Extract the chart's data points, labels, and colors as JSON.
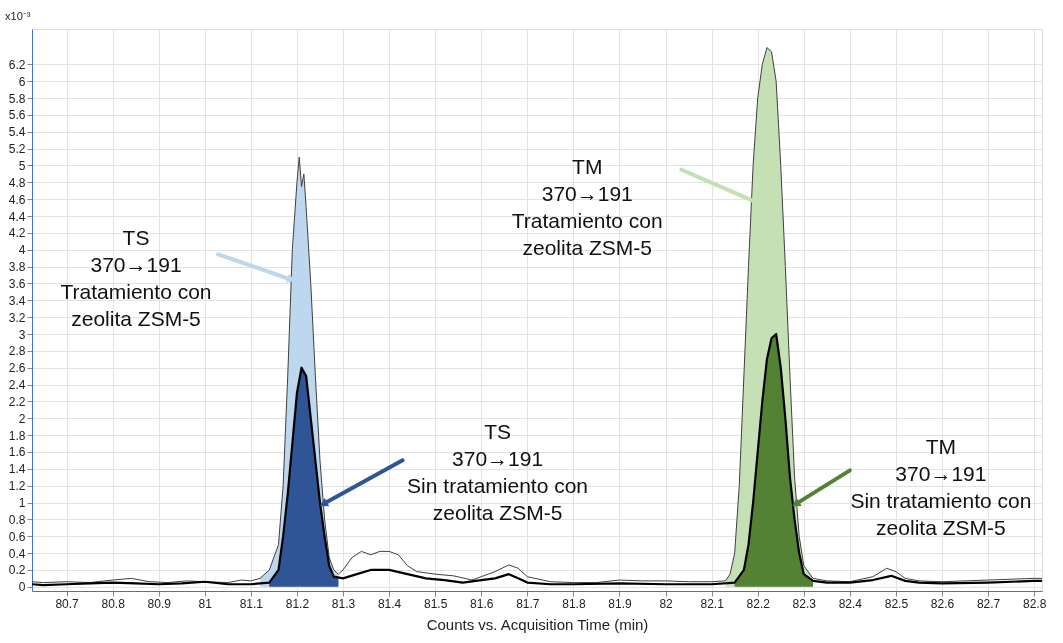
{
  "chart_data": {
    "type": "line",
    "xlabel": "Counts vs. Acquisition Time (min)",
    "ylabel": "x10⁻³",
    "xlim": [
      80.625,
      82.817
    ],
    "ylim": [
      -0.05,
      6.62
    ],
    "xticks": [
      80.7,
      80.8,
      80.9,
      81,
      81.1,
      81.2,
      81.3,
      81.4,
      81.5,
      81.6,
      81.7,
      81.8,
      81.9,
      82,
      82.1,
      82.2,
      82.3,
      82.4,
      82.5,
      82.6,
      82.7,
      82.8
    ],
    "yticks": [
      0,
      0.2,
      0.4,
      0.6,
      0.8,
      1,
      1.2,
      1.4,
      1.6,
      1.8,
      2,
      2.2,
      2.4,
      2.6,
      2.8,
      3,
      3.2,
      3.4,
      3.6,
      3.8,
      4,
      4.2,
      4.4,
      4.6,
      4.8,
      5,
      5.2,
      5.4,
      5.6,
      5.8,
      6,
      6.2
    ],
    "grid": true,
    "marker": "none",
    "series": [
      {
        "type": "area",
        "color": "#bdd7ee",
        "x": [
          81.12,
          81.14,
          81.16,
          81.17,
          81.18,
          81.19,
          81.2,
          81.205,
          81.21,
          81.215,
          81.22,
          81.23,
          81.24,
          81.25,
          81.26,
          81.27,
          81.28,
          81.29
        ],
        "values": [
          0.1,
          0.2,
          0.5,
          1.2,
          2.5,
          4.0,
          4.8,
          5.1,
          4.75,
          4.9,
          4.5,
          3.6,
          2.5,
          1.5,
          0.8,
          0.35,
          0.2,
          0.15
        ]
      },
      {
        "type": "area",
        "color": "#2f5597",
        "x": [
          81.14,
          81.16,
          81.17,
          81.18,
          81.19,
          81.2,
          81.21,
          81.22,
          81.23,
          81.24,
          81.25,
          81.26,
          81.27,
          81.28,
          81.29
        ],
        "values": [
          0.05,
          0.2,
          0.6,
          1.1,
          1.7,
          2.3,
          2.6,
          2.5,
          2.0,
          1.5,
          1.0,
          0.6,
          0.25,
          0.12,
          0.1
        ]
      },
      {
        "type": "area",
        "color": "#c5e0b4",
        "x": [
          82.13,
          82.14,
          82.15,
          82.16,
          82.17,
          82.18,
          82.19,
          82.2,
          82.21,
          82.22,
          82.23,
          82.24,
          82.25,
          82.26,
          82.27,
          82.28,
          82.29,
          82.3,
          82.32
        ],
        "values": [
          0.07,
          0.15,
          0.4,
          1.2,
          2.5,
          3.8,
          5.0,
          5.8,
          6.2,
          6.4,
          6.35,
          6.0,
          5.0,
          3.8,
          2.5,
          1.3,
          0.6,
          0.25,
          0.1
        ]
      },
      {
        "type": "area",
        "color": "#548235",
        "x": [
          82.15,
          82.17,
          82.18,
          82.19,
          82.2,
          82.21,
          82.22,
          82.23,
          82.24,
          82.25,
          82.26,
          82.27,
          82.28,
          82.29,
          82.3,
          82.32
        ],
        "values": [
          0.05,
          0.2,
          0.5,
          1.0,
          1.6,
          2.2,
          2.7,
          2.95,
          3.0,
          2.6,
          2.0,
          1.3,
          0.8,
          0.4,
          0.15,
          0.07
        ]
      },
      {
        "color": "#404040",
        "x": [
          80.625,
          80.65,
          80.7,
          80.75,
          80.8,
          80.84,
          80.88,
          80.92,
          80.96,
          81.0,
          81.05,
          81.08,
          81.1,
          81.12,
          81.14,
          81.16,
          81.17,
          81.18,
          81.19,
          81.2,
          81.205,
          81.21,
          81.215,
          81.22,
          81.23,
          81.24,
          81.25,
          81.26,
          81.27,
          81.28,
          81.29,
          81.3,
          81.32,
          81.34,
          81.36,
          81.38,
          81.4,
          81.42,
          81.44,
          81.46,
          81.5,
          81.54,
          81.58,
          81.6,
          81.63,
          81.66,
          81.68,
          81.7,
          81.75,
          81.8,
          81.85,
          81.9,
          81.95,
          82.0,
          82.05,
          82.1,
          82.13,
          82.14,
          82.15,
          82.16,
          82.17,
          82.18,
          82.19,
          82.2,
          82.21,
          82.22,
          82.23,
          82.24,
          82.25,
          82.26,
          82.27,
          82.28,
          82.29,
          82.3,
          82.32,
          82.35,
          82.4,
          82.45,
          82.48,
          82.5,
          82.52,
          82.55,
          82.6,
          82.65,
          82.7,
          82.75,
          82.8,
          82.817
        ],
        "values": [
          0.06,
          0.05,
          0.06,
          0.05,
          0.08,
          0.1,
          0.06,
          0.05,
          0.07,
          0.06,
          0.05,
          0.08,
          0.07,
          0.1,
          0.2,
          0.5,
          1.2,
          2.5,
          4.0,
          4.8,
          5.1,
          4.75,
          4.9,
          4.5,
          3.6,
          2.5,
          1.5,
          0.8,
          0.35,
          0.2,
          0.15,
          0.2,
          0.35,
          0.42,
          0.38,
          0.42,
          0.42,
          0.38,
          0.25,
          0.18,
          0.15,
          0.13,
          0.08,
          0.12,
          0.18,
          0.26,
          0.22,
          0.12,
          0.06,
          0.05,
          0.05,
          0.08,
          0.07,
          0.07,
          0.06,
          0.06,
          0.07,
          0.15,
          0.4,
          1.2,
          2.5,
          3.8,
          5.0,
          5.8,
          6.2,
          6.4,
          6.35,
          6.0,
          5.0,
          3.8,
          2.5,
          1.3,
          0.6,
          0.25,
          0.1,
          0.07,
          0.06,
          0.12,
          0.22,
          0.18,
          0.1,
          0.07,
          0.06,
          0.07,
          0.08,
          0.09,
          0.1,
          0.1
        ]
      },
      {
        "color": "#000000",
        "x": [
          80.625,
          80.65,
          80.7,
          80.75,
          80.8,
          80.85,
          80.9,
          80.95,
          81.0,
          81.05,
          81.1,
          81.14,
          81.16,
          81.17,
          81.18,
          81.19,
          81.2,
          81.21,
          81.22,
          81.23,
          81.24,
          81.25,
          81.26,
          81.27,
          81.28,
          81.3,
          81.33,
          81.36,
          81.4,
          81.44,
          81.48,
          81.52,
          81.56,
          81.6,
          81.63,
          81.66,
          81.68,
          81.7,
          81.75,
          81.8,
          81.9,
          82.0,
          82.1,
          82.15,
          82.17,
          82.18,
          82.19,
          82.2,
          82.21,
          82.22,
          82.23,
          82.24,
          82.25,
          82.26,
          82.27,
          82.28,
          82.29,
          82.3,
          82.32,
          82.35,
          82.4,
          82.45,
          82.49,
          82.52,
          82.55,
          82.6,
          82.7,
          82.8,
          82.817
        ],
        "values": [
          0.03,
          0.02,
          0.03,
          0.04,
          0.05,
          0.04,
          0.03,
          0.04,
          0.06,
          0.03,
          0.03,
          0.05,
          0.2,
          0.6,
          1.1,
          1.7,
          2.3,
          2.6,
          2.5,
          2.0,
          1.5,
          1.0,
          0.6,
          0.25,
          0.12,
          0.1,
          0.15,
          0.2,
          0.2,
          0.15,
          0.1,
          0.08,
          0.05,
          0.08,
          0.1,
          0.15,
          0.1,
          0.05,
          0.03,
          0.03,
          0.04,
          0.03,
          0.03,
          0.05,
          0.2,
          0.5,
          1.0,
          1.6,
          2.2,
          2.7,
          2.95,
          3.0,
          2.6,
          2.0,
          1.3,
          0.8,
          0.4,
          0.15,
          0.07,
          0.05,
          0.05,
          0.08,
          0.13,
          0.07,
          0.05,
          0.04,
          0.05,
          0.07,
          0.07
        ]
      }
    ],
    "annotations": [
      {
        "text": "TS\n370→191\nTratamiento con\nzeolita ZSM-5",
        "x": 81.185,
        "y": 3.65
      },
      {
        "text": "TS\n370→191\nSin tratamiento con\nzeolita ZSM-5",
        "x": 81.26,
        "y": 0.99
      },
      {
        "text": "TM\n370→191\nTratamiento con\nzeolita ZSM-5",
        "x": 82.199,
        "y": 4.56
      },
      {
        "text": "TM\n370→191\nSin tratamiento con\nzeolita ZSM-5",
        "x": 82.285,
        "y": 0.99
      }
    ]
  }
}
